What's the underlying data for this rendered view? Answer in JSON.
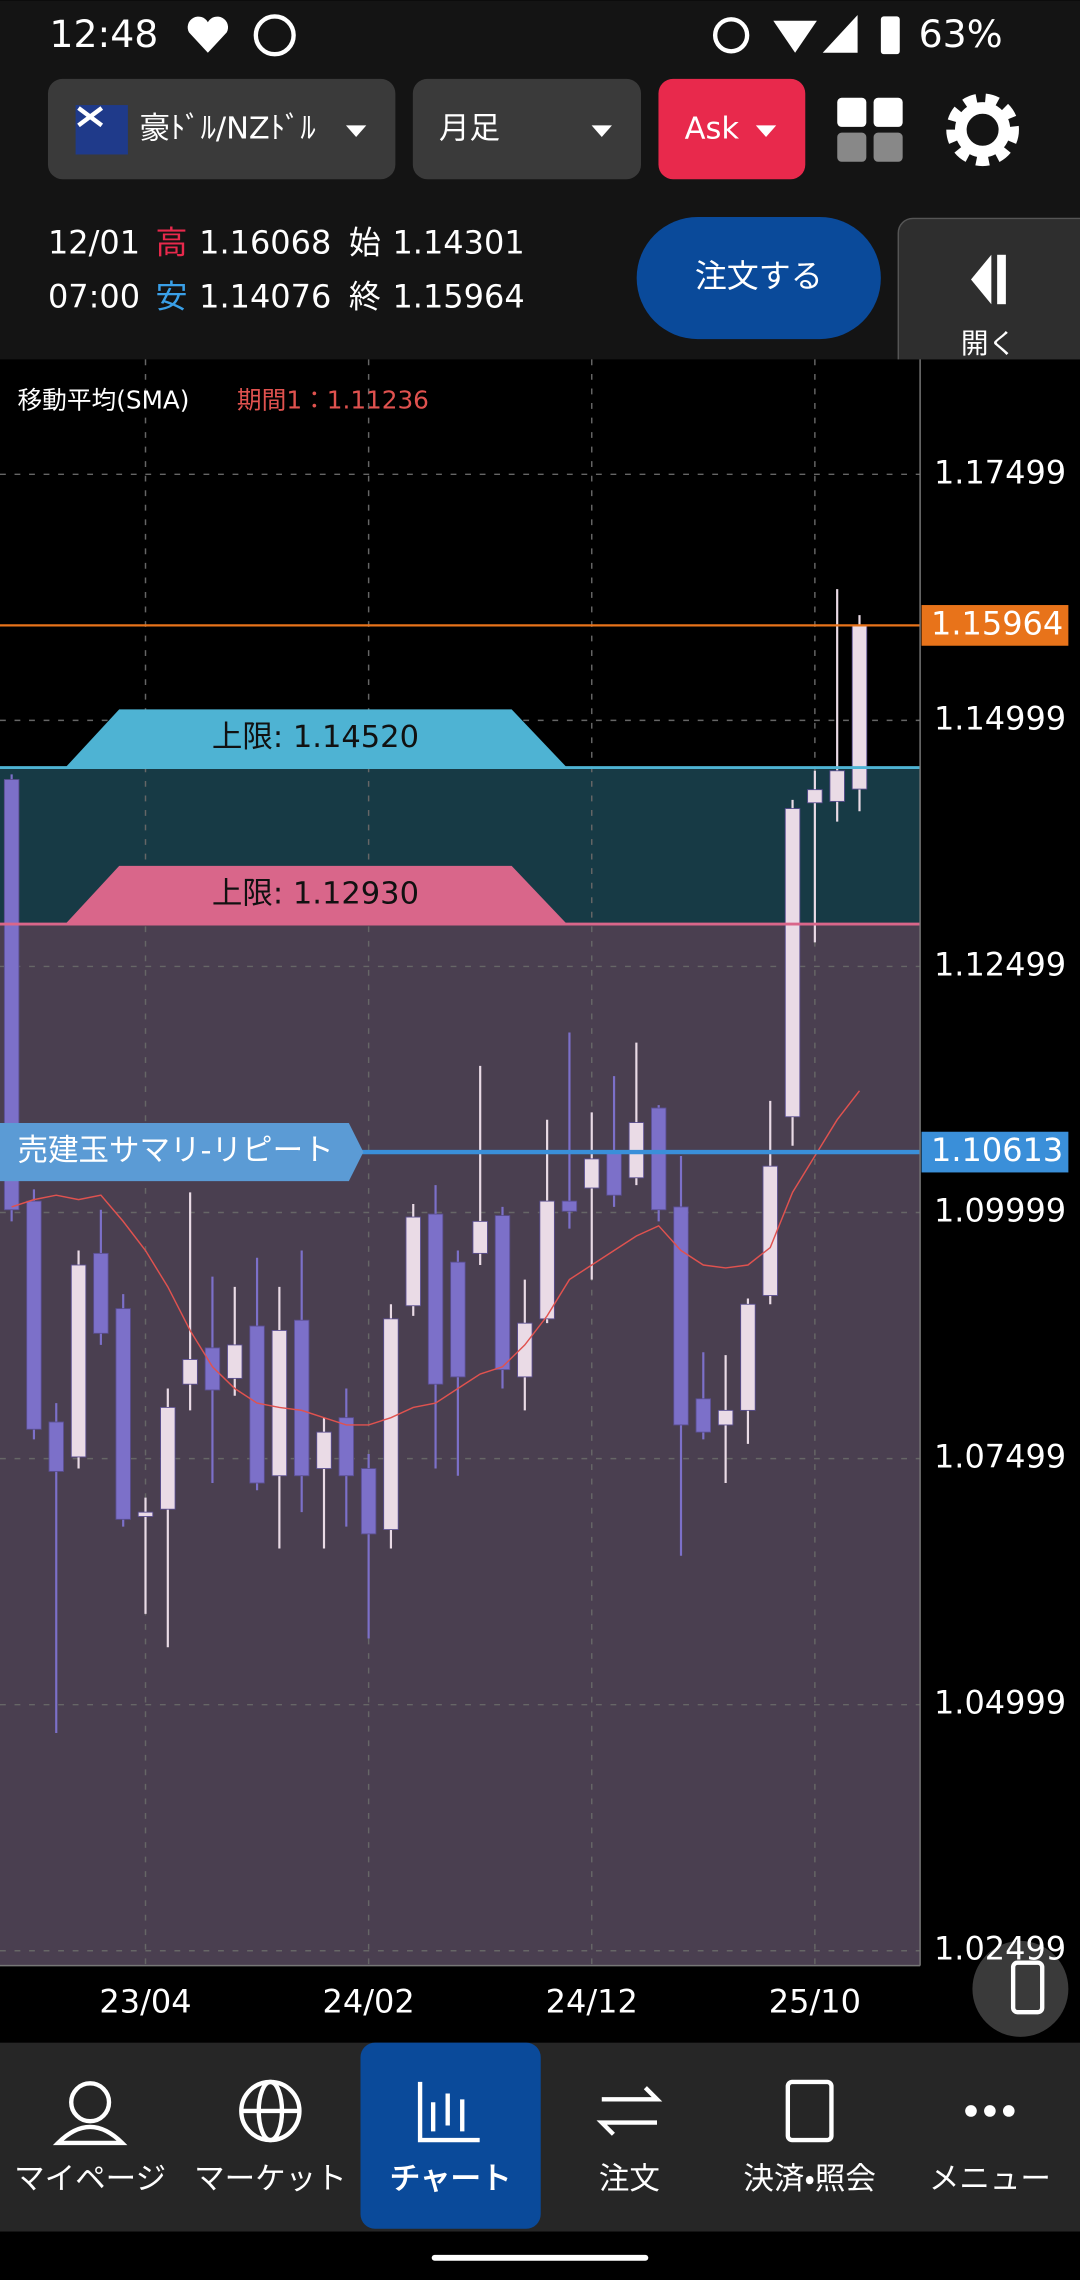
{
  "status_bar": {
    "time": "12:48",
    "battery": "63%"
  },
  "toolbar": {
    "pair": "豪ﾄﾞﾙ/NZﾄﾞﾙ",
    "timeframe": "月足",
    "side": "Ask"
  },
  "info": {
    "date": "12/01",
    "time": "07:00",
    "high_label": "高",
    "low_label": "安",
    "open_label": "始",
    "close_label": "終"
  },
  "order_button": "注文する",
  "side_panel": "開く",
  "chart_data": {
    "type": "candlestick",
    "categories": [
      null,
      null,
      null,
      null,
      null,
      null,
      "23/04",
      null,
      null,
      null,
      null,
      null,
      null,
      null,
      null,
      null,
      "24/02",
      null,
      null,
      null,
      null,
      null,
      null,
      null,
      null,
      null,
      "24/12",
      null,
      null,
      null,
      null,
      null,
      null,
      null,
      null,
      null,
      "25/10",
      null,
      null
    ],
    "open": [
      1.14398,
      1.10115,
      1.07871,
      1.07516,
      1.09584,
      1.09023,
      1.06911,
      1.06985,
      1.08255,
      1.08624,
      1.08314,
      1.08846,
      1.07325,
      1.08905,
      1.07398,
      1.07915,
      1.07398,
      1.06778,
      1.09052,
      1.09983,
      1.09495,
      1.09584,
      1.09968,
      1.08329,
      1.08919,
      1.10115,
      1.10248,
      1.10618,
      1.10352,
      1.11061,
      1.10056,
      1.08107,
      1.07841,
      1.07989,
      1.09156,
      1.10972,
      1.14162,
      1.14176,
      1.14301
    ],
    "high": [
      1.1445,
      1.10234,
      1.08063,
      1.09613,
      1.10027,
      1.0917,
      1.07103,
      1.08211,
      1.10204,
      1.09348,
      1.09244,
      1.0954,
      1.09244,
      1.09613,
      1.07915,
      1.08211,
      1.07546,
      1.09067,
      1.10086,
      1.10278,
      1.09613,
      1.11489,
      1.10056,
      1.09318,
      1.10942,
      1.11828,
      1.11016,
      1.11385,
      1.11725,
      1.1109,
      1.10573,
      1.0858,
      1.0855,
      1.09126,
      1.11134,
      1.14191,
      1.14487,
      1.16332,
      1.16068
    ],
    "low": [
      1.09909,
      1.07694,
      1.04711,
      1.07398,
      1.08654,
      1.06808,
      1.05922,
      1.05582,
      1.07989,
      1.07251,
      1.08137,
      1.07177,
      1.06586,
      1.06955,
      1.06586,
      1.06808,
      1.05671,
      1.06586,
      1.08949,
      1.07398,
      1.07325,
      1.09466,
      1.08211,
      1.07989,
      1.08875,
      1.09835,
      1.09318,
      1.10056,
      1.10278,
      1.09909,
      1.06512,
      1.07694,
      1.07251,
      1.07649,
      1.09067,
      1.10677,
      1.12744,
      1.1397,
      1.14076
    ],
    "close": [
      1.10027,
      1.07797,
      1.07369,
      1.09466,
      1.08772,
      1.06882,
      1.06955,
      1.08019,
      1.08506,
      1.08196,
      1.08654,
      1.07251,
      1.08801,
      1.07325,
      1.07768,
      1.07325,
      1.06734,
      1.08919,
      1.09953,
      1.08255,
      1.08329,
      1.09909,
      1.08403,
      1.08875,
      1.10115,
      1.10012,
      1.10544,
      1.10175,
      1.10913,
      1.10027,
      1.07841,
      1.07768,
      1.07989,
      1.09067,
      1.1047,
      1.14103,
      1.14295,
      1.14487,
      1.15964
    ],
    "up_color": "#eadbe6",
    "down_color": "#7c70c9",
    "sma": {
      "name": "移動平均(SMA)",
      "label": "期間1：",
      "color": "#e0524f",
      "values": [
        1.10056,
        1.1013,
        1.10175,
        1.1013,
        1.10175,
        1.09909,
        1.09613,
        1.09244,
        1.08801,
        1.08432,
        1.08211,
        1.08063,
        1.08019,
        1.07989,
        1.07915,
        1.07841,
        1.07841,
        1.07915,
        1.08019,
        1.08063,
        1.08211,
        1.08358,
        1.08432,
        1.08654,
        1.08949,
        1.09318,
        1.09466,
        1.09613,
        1.09761,
        1.09864,
        1.09613,
        1.09466,
        1.09436,
        1.09466,
        1.09643,
        1.10204,
        1.10573,
        1.10942,
        1.11236
      ]
    },
    "lines": [
      {
        "value": 1.1452,
        "label": "上限: 1.14520",
        "color": "#4eb3d3"
      },
      {
        "value": 1.1293,
        "label": "上限: 1.12930",
        "color": "#d9668a"
      },
      {
        "value": 1.10613,
        "name": "売建玉サマリ-リピート",
        "color": "#3a8fd9"
      }
    ],
    "price_color": "#e8731a",
    "ylim": [
      1.02348,
      1.18666
    ],
    "yticks": [
      1.02499,
      1.04999,
      1.07499,
      1.09999,
      1.12499,
      1.14999,
      1.17499
    ],
    "grid": true
  },
  "nav": [
    "マイページ",
    "マーケット",
    "チャート",
    "注文",
    "決済・照会",
    "メニュー"
  ]
}
